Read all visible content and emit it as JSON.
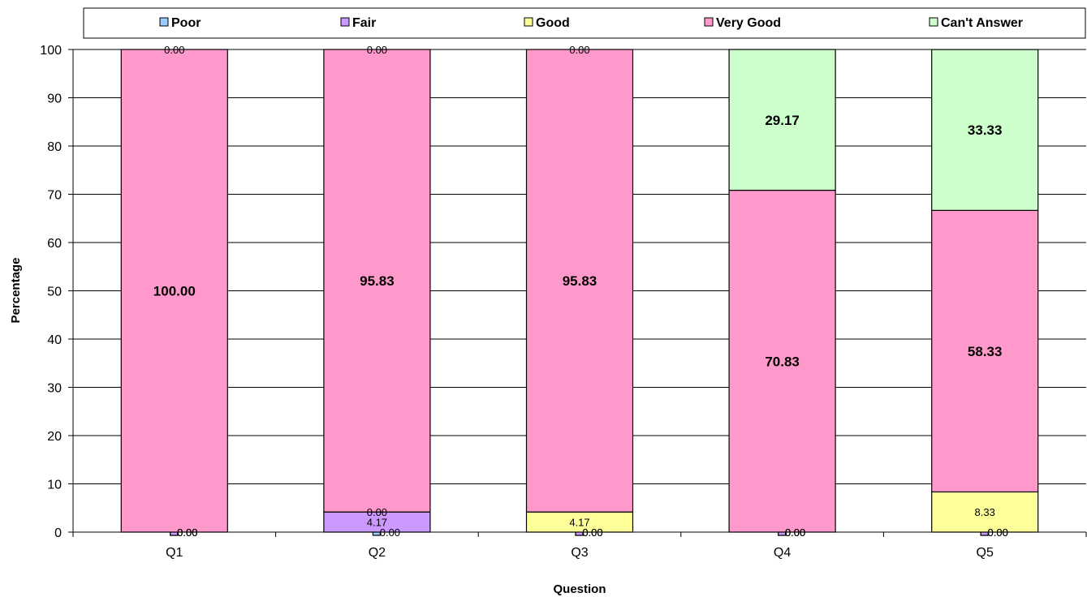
{
  "chart_data": {
    "type": "bar",
    "stacked": true,
    "categories": [
      "Q1",
      "Q2",
      "Q3",
      "Q4",
      "Q5"
    ],
    "series": [
      {
        "name": "Poor",
        "color": "#99ccff",
        "values": [
          0.0,
          0.0,
          0.0,
          0.0,
          0.0
        ],
        "labels": [
          "0.00",
          "0.00",
          "0.00",
          "0.00",
          "0.00"
        ]
      },
      {
        "name": "Fair",
        "color": "#cc99ff",
        "values": [
          0.0,
          4.17,
          0.0,
          0.0,
          0.0
        ],
        "labels": [
          "0.00",
          "4.17",
          "0.00",
          "0.00",
          "0.00"
        ]
      },
      {
        "name": "Good",
        "color": "#ffff99",
        "values": [
          0.0,
          0.0,
          4.17,
          0.0,
          8.33
        ],
        "labels": [
          "0.00",
          "0.00",
          "4.17",
          "0.00",
          "8.33"
        ]
      },
      {
        "name": "Very Good",
        "color": "#ff99cc",
        "values": [
          100.0,
          95.83,
          95.83,
          70.83,
          58.33
        ],
        "labels": [
          "100.00",
          "95.83",
          "95.83",
          "70.83",
          "58.33"
        ]
      },
      {
        "name": "Can't Answer",
        "color": "#ccffcc",
        "values": [
          0.0,
          0.0,
          0.0,
          29.17,
          33.33
        ],
        "labels": [
          "0.00",
          "0.00",
          "0.00",
          "29.17",
          "33.33"
        ]
      }
    ],
    "xlabel": "Question",
    "ylabel": "Percentage",
    "ylim": [
      0,
      100
    ],
    "yticks": [
      "0",
      "10",
      "20",
      "30",
      "40",
      "50",
      "60",
      "70",
      "80",
      "90",
      "100"
    ],
    "grid": true,
    "legend": "top"
  }
}
